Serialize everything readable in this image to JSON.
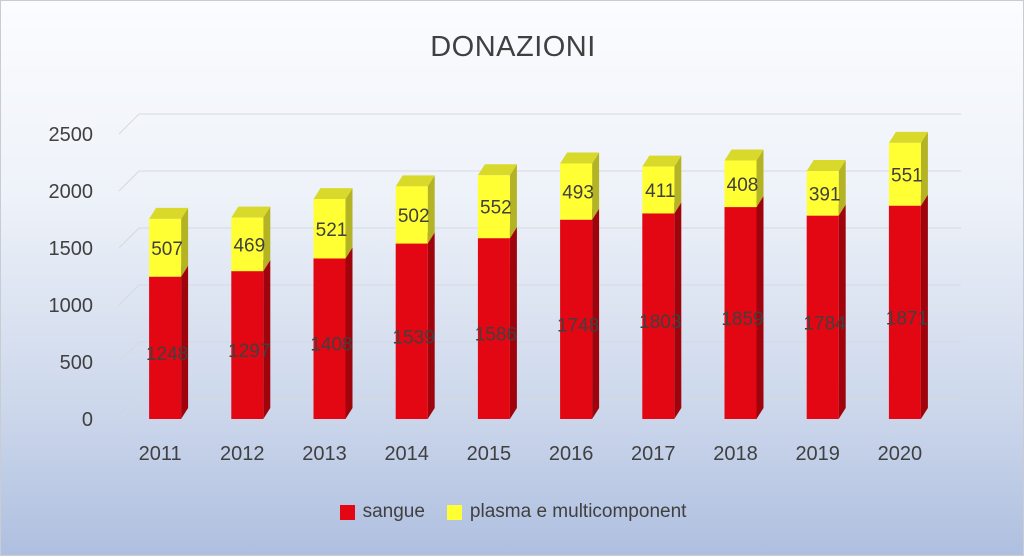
{
  "chart_data": {
    "type": "bar",
    "stacked": true,
    "three_d": true,
    "title": "DONAZIONI",
    "categories": [
      "2011",
      "2012",
      "2013",
      "2014",
      "2015",
      "2016",
      "2017",
      "2018",
      "2019",
      "2020"
    ],
    "series": [
      {
        "name": "sangue",
        "color": "#e30613",
        "values": [
          1248,
          1297,
          1408,
          1539,
          1586,
          1748,
          1803,
          1859,
          1784,
          1871
        ]
      },
      {
        "name": "plasma e multicomponent",
        "color": "#ffff33",
        "values": [
          507,
          469,
          521,
          502,
          552,
          493,
          411,
          408,
          391,
          551
        ]
      }
    ],
    "ylim": [
      0,
      2500
    ],
    "yticks": [
      "0",
      "500",
      "1000",
      "1500",
      "2000",
      "2500"
    ],
    "grid": true,
    "legend_position": "bottom"
  }
}
